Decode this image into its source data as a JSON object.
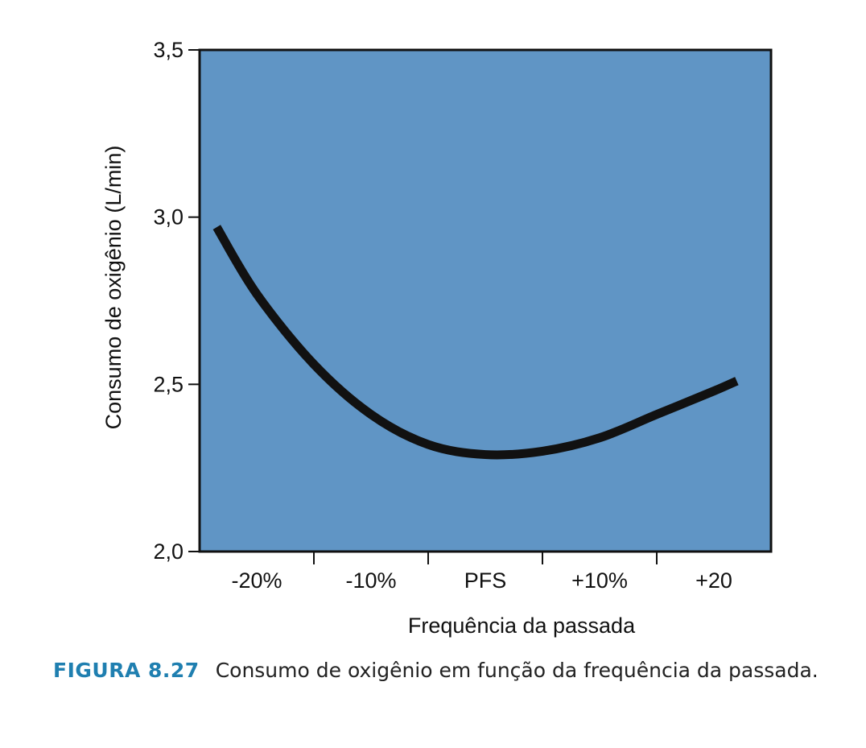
{
  "chart_data": {
    "type": "line",
    "xlabel": "Frequência da passada",
    "ylabel": "Consumo de oxigênio (L/min)",
    "x_ticks": [
      "-20%",
      "-10%",
      "PFS",
      "+10%",
      "+20"
    ],
    "x_tick_values": [
      -20,
      -10,
      0,
      10,
      20
    ],
    "xlim": [
      -25,
      25
    ],
    "ylim": [
      2.0,
      3.5
    ],
    "y_ticks": [
      "2,0",
      "2,5",
      "3,0",
      "3,5"
    ],
    "y_tick_values": [
      2.0,
      2.5,
      3.0,
      3.5
    ],
    "grid": false,
    "plot_background": "#6095c5",
    "series": [
      {
        "color": "#111111",
        "x": [
          -23.5,
          -20,
          -15,
          -10,
          -5,
          0,
          5,
          10,
          15,
          20,
          22
        ],
        "y": [
          2.97,
          2.77,
          2.56,
          2.41,
          2.32,
          2.29,
          2.3,
          2.34,
          2.41,
          2.48,
          2.51
        ]
      }
    ]
  },
  "caption": {
    "label": "FIGURA 8.27",
    "text": "Consumo de oxigênio em função da frequência da passada."
  }
}
